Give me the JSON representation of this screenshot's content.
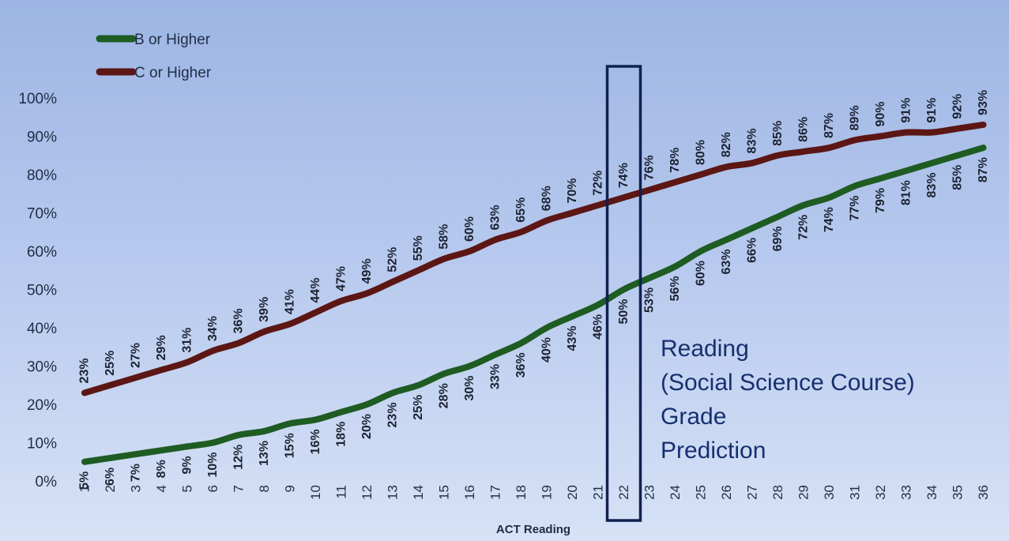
{
  "chart_data": {
    "type": "line",
    "xlabel": "ACT Reading",
    "ylabel": "",
    "categories": [
      1,
      2,
      3,
      4,
      5,
      6,
      7,
      8,
      9,
      10,
      11,
      12,
      13,
      14,
      15,
      16,
      17,
      18,
      19,
      20,
      21,
      22,
      23,
      24,
      25,
      26,
      27,
      28,
      29,
      30,
      31,
      32,
      33,
      34,
      35,
      36
    ],
    "ylim": [
      0,
      100
    ],
    "y_ticks": [
      "0%",
      "10%",
      "20%",
      "30%",
      "40%",
      "50%",
      "60%",
      "70%",
      "80%",
      "90%",
      "100%"
    ],
    "grid": false,
    "legend_position": "top-left",
    "series": [
      {
        "name": "B or Higher",
        "color": "#1e5c22",
        "values": [
          5,
          6,
          7,
          8,
          9,
          10,
          12,
          13,
          15,
          16,
          18,
          20,
          23,
          25,
          28,
          30,
          33,
          36,
          40,
          43,
          46,
          50,
          53,
          56,
          60,
          63,
          66,
          69,
          72,
          74,
          77,
          79,
          81,
          83,
          85,
          87
        ]
      },
      {
        "name": "C or Higher",
        "color": "#5c1614",
        "values": [
          23,
          25,
          27,
          29,
          31,
          34,
          36,
          39,
          41,
          44,
          47,
          49,
          52,
          55,
          58,
          60,
          63,
          65,
          68,
          70,
          72,
          74,
          76,
          78,
          80,
          82,
          83,
          85,
          86,
          87,
          89,
          90,
          91,
          91,
          92,
          93
        ]
      }
    ],
    "highlight_category": 22,
    "annotation_lines": [
      "Reading",
      "(Social Science Course)",
      "Grade",
      "Prediction"
    ]
  }
}
